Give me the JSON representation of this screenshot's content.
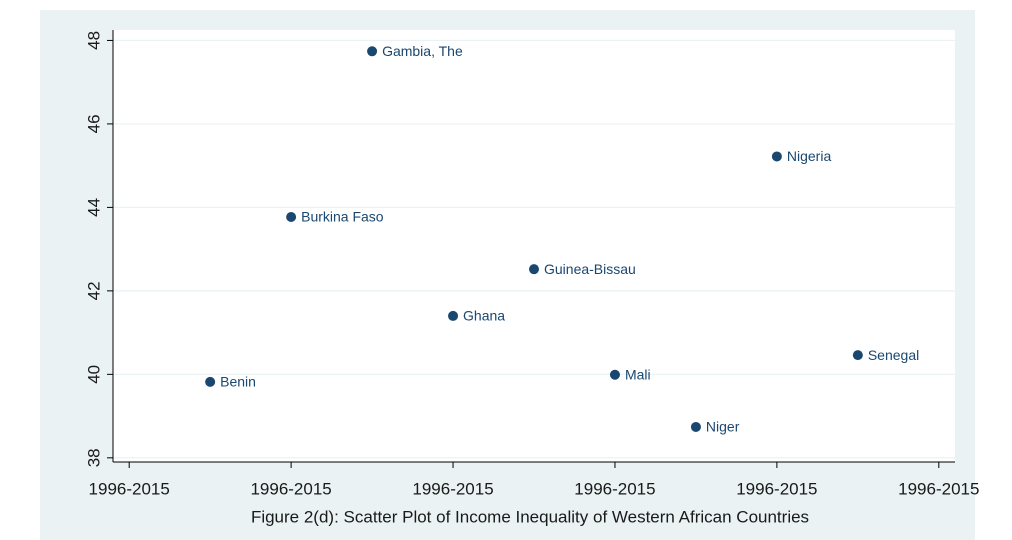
{
  "chart_data": {
    "type": "scatter",
    "title": "Figure 2(d): Scatter Plot of Income Inequality of Western African Countries",
    "labels": [
      "Benin",
      "Burkina Faso",
      "Gambia, The",
      "Ghana",
      "Guinea-Bissau",
      "Mali",
      "Niger",
      "Nigeria",
      "Senegal"
    ],
    "x": [
      0.5,
      1,
      1.5,
      2,
      2.5,
      3,
      3.5,
      4,
      4.5
    ],
    "values": [
      39.82,
      43.77,
      47.74,
      41.4,
      42.52,
      39.99,
      38.74,
      45.22,
      40.46
    ],
    "color": "#1a476f",
    "xlim": [
      -0.1,
      5.1
    ],
    "xticks": [
      {
        "value": 0,
        "label": "1996-2015"
      },
      {
        "value": 1,
        "label": "1996-2015"
      },
      {
        "value": 2,
        "label": "1996-2015"
      },
      {
        "value": 3,
        "label": "1996-2015"
      },
      {
        "value": 4,
        "label": "1996-2015"
      },
      {
        "value": 5,
        "label": "1996-2015"
      }
    ],
    "ylim": [
      37.9,
      48.25
    ],
    "yticks": [
      38,
      40,
      42,
      44,
      46,
      48
    ],
    "grid": true
  }
}
